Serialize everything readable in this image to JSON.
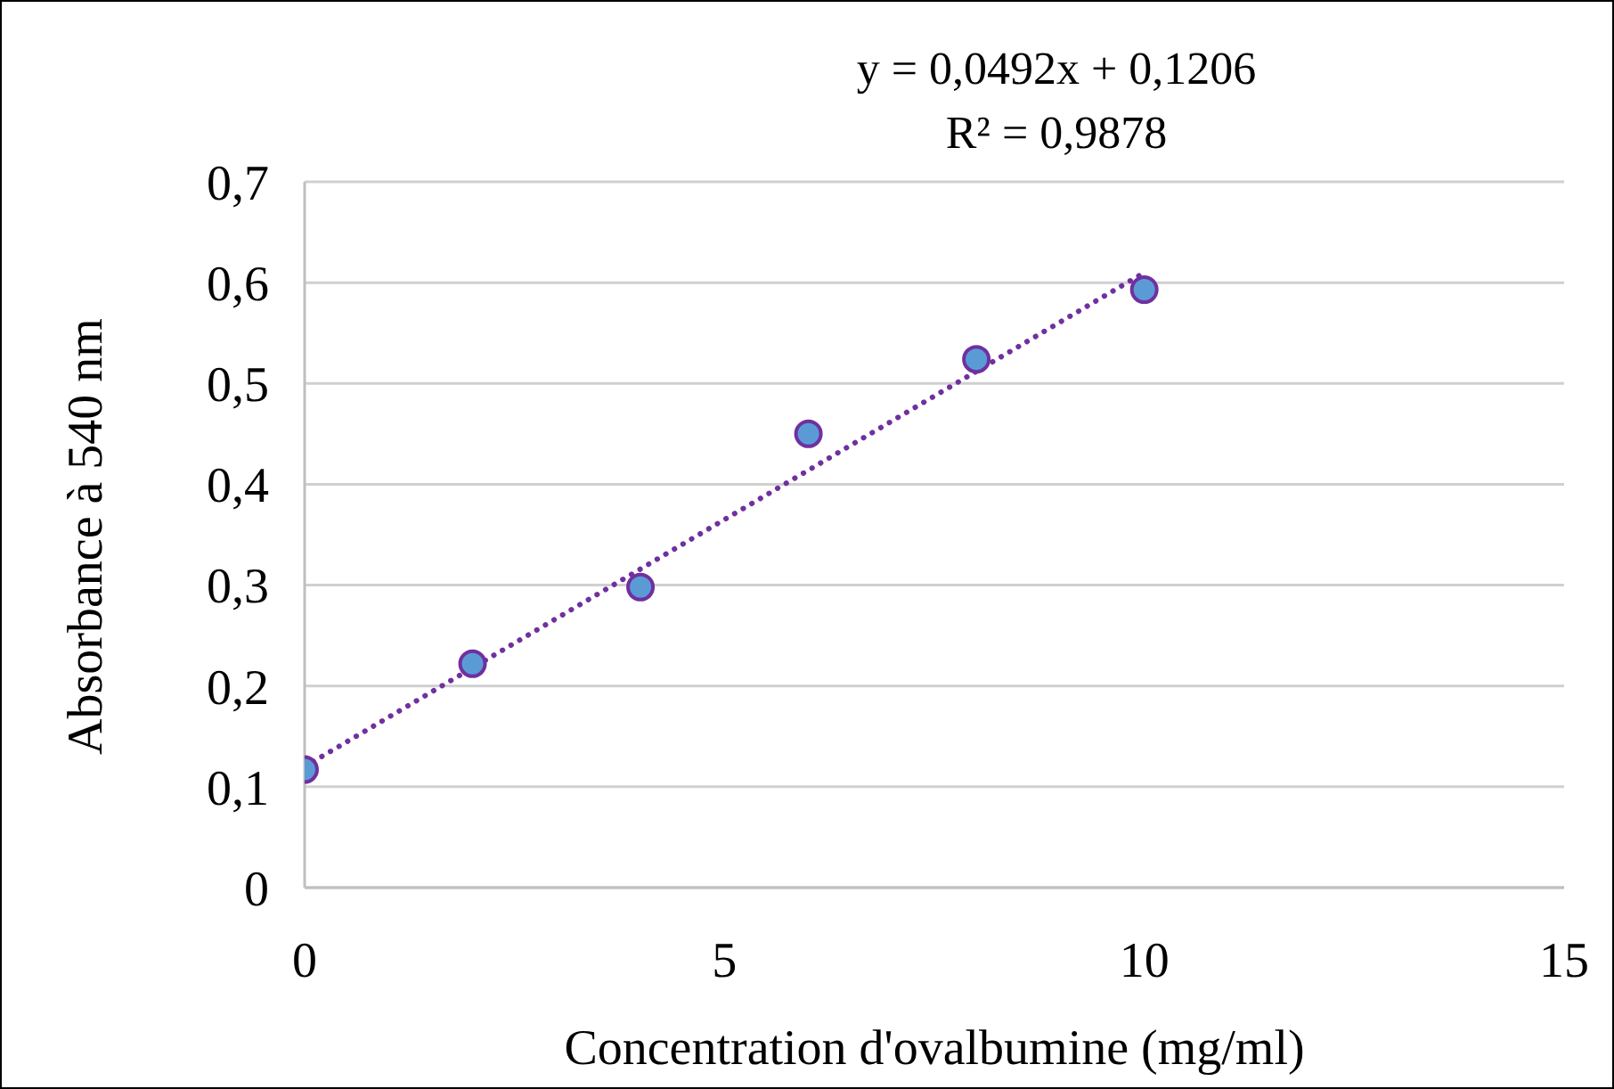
{
  "chart_data": {
    "type": "scatter",
    "xlabel": "Concentration d'ovalbumine (mg/ml)",
    "ylabel": "Absorbance à 540 nm",
    "annotations": [
      "y = 0,0492x + 0,1206",
      "R² = 0,9878"
    ],
    "x": [
      0,
      2,
      4,
      6,
      8,
      10
    ],
    "series": [
      {
        "color": "#5b9bd5",
        "values": [
          0.117,
          0.222,
          0.298,
          0.45,
          0.524,
          0.593
        ],
        "marker": "circle"
      },
      {
        "type": "line",
        "color": "#7030a0",
        "x": [
          0,
          10
        ],
        "values": [
          0.12,
          0.61
        ],
        "line_style": "dotted"
      }
    ],
    "xlim": [
      0,
      15
    ],
    "xticks": [
      0,
      5,
      10,
      15
    ],
    "ylim": [
      0,
      0.7
    ],
    "yticks": [
      0,
      {
        "value": 0.1,
        "label": "0,1"
      },
      {
        "value": 0.2,
        "label": "0,2"
      },
      {
        "value": 0.3,
        "label": "0,3"
      },
      {
        "value": 0.4,
        "label": "0,4"
      },
      {
        "value": 0.5,
        "label": "0,5"
      },
      {
        "value": 0.6,
        "label": "0,6"
      },
      {
        "value": 0.7,
        "label": "0,7"
      }
    ],
    "grid": "y"
  }
}
